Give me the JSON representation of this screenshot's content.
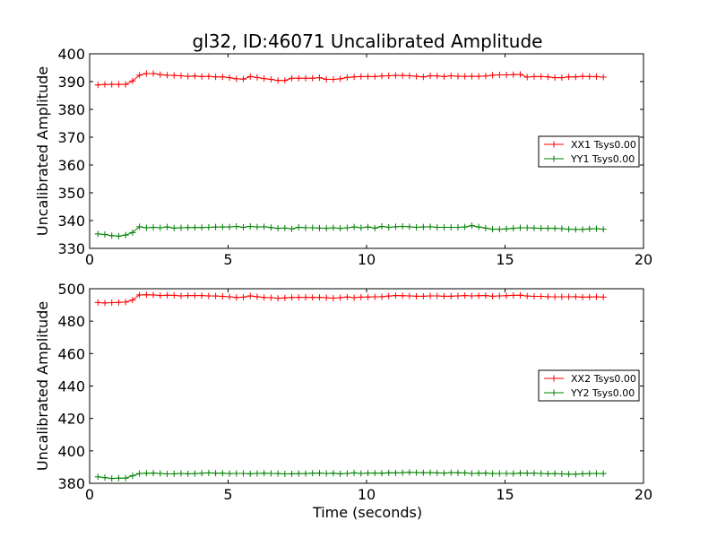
{
  "figure": {
    "title": "gl32, ID:46071 Uncalibrated Amplitude",
    "xlabel": "Time (seconds)"
  },
  "colors": {
    "red": "#ff0000",
    "green": "#008000"
  },
  "chart_data": [
    {
      "type": "line",
      "ylabel": "Uncalibrated Amplitude",
      "xlim": [
        0,
        20
      ],
      "ylim": [
        330,
        400
      ],
      "xticks": [
        "0",
        "5",
        "10",
        "15",
        "20"
      ],
      "yticks": [
        "330",
        "340",
        "350",
        "360",
        "370",
        "380",
        "390",
        "400"
      ],
      "grid": false,
      "legend_position": "center-right",
      "x": [
        0.3,
        0.55,
        0.8,
        1.05,
        1.3,
        1.55,
        1.8,
        2.05,
        2.3,
        2.55,
        2.8,
        3.05,
        3.3,
        3.55,
        3.8,
        4.05,
        4.3,
        4.55,
        4.8,
        5.05,
        5.3,
        5.55,
        5.8,
        6.05,
        6.3,
        6.55,
        6.8,
        7.05,
        7.3,
        7.55,
        7.8,
        8.05,
        8.3,
        8.55,
        8.8,
        9.05,
        9.3,
        9.55,
        9.8,
        10.05,
        10.3,
        10.55,
        10.8,
        11.05,
        11.3,
        11.55,
        11.8,
        12.05,
        12.3,
        12.55,
        12.8,
        13.05,
        13.3,
        13.55,
        13.8,
        14.05,
        14.3,
        14.55,
        14.8,
        15.05,
        15.3,
        15.55,
        15.8,
        16.05,
        16.3,
        16.55,
        16.8,
        17.05,
        17.3,
        17.55,
        17.8,
        18.05,
        18.3,
        18.55
      ],
      "series": [
        {
          "name": "XX1 Tsys0.00",
          "color": "#ff0000",
          "values": [
            388.8,
            389.0,
            389.0,
            389.0,
            389.0,
            390.2,
            392.3,
            392.9,
            392.9,
            392.5,
            392.3,
            392.2,
            392.1,
            391.9,
            392.0,
            391.8,
            391.9,
            391.7,
            391.7,
            391.4,
            391.0,
            390.9,
            391.8,
            391.5,
            391.1,
            390.8,
            390.4,
            390.4,
            391.2,
            391.2,
            391.2,
            391.2,
            391.4,
            390.8,
            390.8,
            391.0,
            391.5,
            391.7,
            391.8,
            391.8,
            391.8,
            392.0,
            392.1,
            392.2,
            392.2,
            392.1,
            391.9,
            391.7,
            392.1,
            392.0,
            391.8,
            392.1,
            391.9,
            391.9,
            391.9,
            391.9,
            392.0,
            392.3,
            392.4,
            392.4,
            392.5,
            392.6,
            391.6,
            391.8,
            391.8,
            391.7,
            391.4,
            391.4,
            391.7,
            391.7,
            391.9,
            391.8,
            391.8,
            391.6
          ]
        },
        {
          "name": "YY1 Tsys0.00",
          "color": "#008000",
          "values": [
            335.2,
            335.0,
            334.6,
            334.4,
            334.8,
            335.7,
            337.8,
            337.4,
            337.6,
            337.4,
            337.7,
            337.3,
            337.4,
            337.5,
            337.5,
            337.5,
            337.6,
            337.7,
            337.7,
            337.7,
            337.9,
            337.6,
            337.9,
            337.7,
            337.8,
            337.5,
            337.2,
            337.3,
            337.0,
            337.6,
            337.4,
            337.4,
            337.3,
            337.2,
            337.4,
            337.2,
            337.4,
            337.7,
            337.4,
            337.7,
            337.3,
            337.9,
            337.6,
            337.8,
            337.9,
            337.8,
            337.6,
            337.7,
            337.8,
            337.6,
            337.6,
            337.6,
            337.6,
            337.7,
            338.2,
            337.7,
            337.3,
            336.9,
            336.9,
            337.0,
            337.2,
            337.4,
            337.4,
            337.3,
            337.2,
            337.2,
            337.2,
            337.1,
            336.9,
            336.8,
            336.8,
            337.0,
            337.1,
            336.9
          ]
        }
      ]
    },
    {
      "type": "line",
      "ylabel": "Uncalibrated Amplitude",
      "xlim": [
        0,
        20
      ],
      "ylim": [
        380,
        500
      ],
      "xticks": [
        "0",
        "5",
        "10",
        "15",
        "20"
      ],
      "yticks": [
        "380",
        "400",
        "420",
        "440",
        "460",
        "480",
        "500"
      ],
      "grid": false,
      "legend_position": "center-right",
      "x": [
        0.3,
        0.55,
        0.8,
        1.05,
        1.3,
        1.55,
        1.8,
        2.05,
        2.3,
        2.55,
        2.8,
        3.05,
        3.3,
        3.55,
        3.8,
        4.05,
        4.3,
        4.55,
        4.8,
        5.05,
        5.3,
        5.55,
        5.8,
        6.05,
        6.3,
        6.55,
        6.8,
        7.05,
        7.3,
        7.55,
        7.8,
        8.05,
        8.3,
        8.55,
        8.8,
        9.05,
        9.3,
        9.55,
        9.8,
        10.05,
        10.3,
        10.55,
        10.8,
        11.05,
        11.3,
        11.55,
        11.8,
        12.05,
        12.3,
        12.55,
        12.8,
        13.05,
        13.3,
        13.55,
        13.8,
        14.05,
        14.3,
        14.55,
        14.8,
        15.05,
        15.3,
        15.55,
        15.8,
        16.05,
        16.3,
        16.55,
        16.8,
        17.05,
        17.3,
        17.55,
        17.8,
        18.05,
        18.3,
        18.55
      ],
      "series": [
        {
          "name": "XX2 Tsys0.00",
          "color": "#ff0000",
          "values": [
            491.5,
            491.2,
            491.4,
            491.6,
            491.8,
            493.0,
            496.2,
            496.3,
            496.2,
            495.8,
            496.0,
            495.9,
            495.6,
            495.8,
            495.8,
            495.8,
            495.6,
            495.5,
            495.3,
            495.0,
            494.6,
            494.8,
            495.6,
            495.1,
            494.6,
            494.5,
            494.1,
            494.3,
            494.6,
            494.7,
            494.7,
            494.6,
            494.7,
            494.5,
            494.2,
            494.5,
            494.9,
            494.5,
            494.8,
            494.9,
            495.0,
            495.1,
            495.5,
            495.8,
            495.7,
            495.6,
            495.4,
            495.4,
            495.6,
            495.6,
            495.4,
            495.4,
            495.6,
            495.8,
            495.6,
            495.7,
            495.8,
            495.4,
            495.6,
            495.7,
            495.9,
            496.0,
            495.5,
            495.3,
            495.3,
            495.1,
            495.0,
            495.0,
            495.0,
            495.1,
            494.8,
            494.9,
            495.0,
            494.8
          ]
        },
        {
          "name": "YY2 Tsys0.00",
          "color": "#008000",
          "values": [
            384.0,
            383.5,
            383.0,
            383.2,
            383.2,
            384.6,
            386.0,
            386.2,
            386.3,
            386.1,
            385.8,
            385.9,
            386.1,
            385.9,
            386.0,
            386.2,
            386.4,
            386.2,
            386.2,
            386.0,
            386.1,
            386.1,
            385.9,
            386.1,
            386.2,
            386.1,
            386.0,
            385.8,
            385.9,
            386.0,
            386.0,
            386.2,
            386.3,
            386.1,
            386.2,
            385.9,
            386.1,
            386.4,
            386.1,
            386.3,
            386.3,
            386.2,
            386.5,
            386.4,
            386.6,
            386.8,
            386.6,
            386.5,
            386.6,
            386.4,
            386.3,
            386.6,
            386.5,
            386.4,
            386.1,
            386.2,
            386.3,
            386.0,
            386.1,
            386.1,
            386.0,
            386.3,
            386.2,
            386.2,
            386.1,
            385.9,
            386.0,
            385.8,
            385.7,
            385.6,
            385.9,
            386.0,
            386.1,
            386.0
          ]
        }
      ]
    }
  ]
}
